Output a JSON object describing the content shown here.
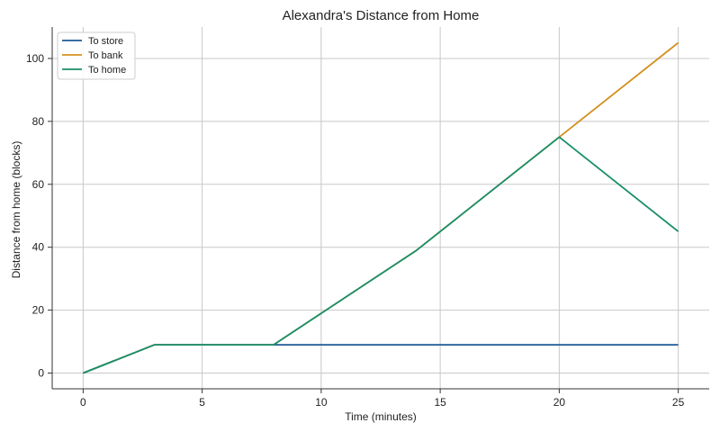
{
  "chart_data": {
    "type": "line",
    "title": "Alexandra's Distance from Home",
    "xlabel": "Time (minutes)",
    "ylabel": "Distance from home (blocks)",
    "xlim": [
      -1.3,
      26.3
    ],
    "ylim": [
      -5,
      110
    ],
    "xticks": [
      0,
      5,
      10,
      15,
      20,
      25
    ],
    "yticks": [
      0,
      20,
      40,
      60,
      80,
      100
    ],
    "grid": true,
    "legend_position": "top-left",
    "series": [
      {
        "name": "To store",
        "color": "#1f5a96",
        "points": [
          [
            0,
            0
          ],
          [
            3,
            9
          ],
          [
            8,
            9
          ],
          [
            25,
            9
          ]
        ]
      },
      {
        "name": "To bank",
        "color": "#d4901f",
        "points": [
          [
            0,
            0
          ],
          [
            3,
            9
          ],
          [
            8,
            9
          ],
          [
            10,
            19
          ],
          [
            14,
            39
          ],
          [
            20,
            75
          ],
          [
            25,
            105
          ]
        ]
      },
      {
        "name": "To home",
        "color": "#178f6a",
        "points": [
          [
            0,
            0
          ],
          [
            3,
            9
          ],
          [
            8,
            9
          ],
          [
            10,
            19
          ],
          [
            14,
            39
          ],
          [
            20,
            75
          ],
          [
            25,
            45
          ]
        ]
      }
    ]
  }
}
